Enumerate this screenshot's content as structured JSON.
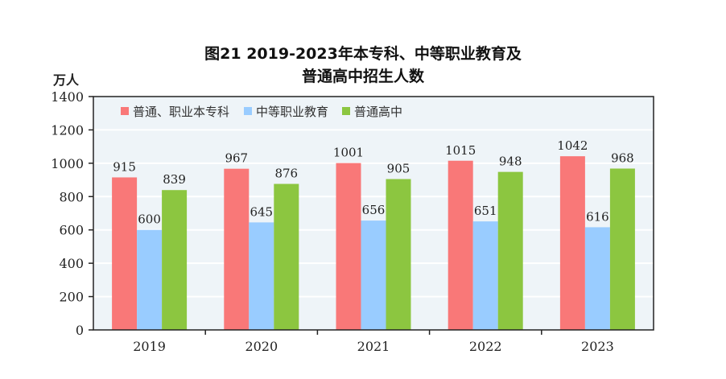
{
  "chart_data": {
    "type": "bar",
    "title_line1": "图21  2019-2023年本专科、中等职业教育及",
    "title_line2": "普通高中招生人数",
    "ylabel": "万人",
    "xlabel": "",
    "ylim": [
      0,
      1400
    ],
    "yticks": [
      0,
      200,
      400,
      600,
      800,
      1000,
      1200,
      1400
    ],
    "grid": true,
    "legend_position": "top",
    "categories": [
      "2019",
      "2020",
      "2021",
      "2022",
      "2023"
    ],
    "series": [
      {
        "name": "普通、职业本专科",
        "color": "#f97878",
        "values": [
          915,
          967,
          1001,
          1015,
          1042
        ]
      },
      {
        "name": "中等职业教育",
        "color": "#99ccff",
        "values": [
          600,
          645,
          656,
          651,
          616
        ]
      },
      {
        "name": "普通高中",
        "color": "#8cc640",
        "values": [
          839,
          876,
          905,
          948,
          968
        ]
      }
    ],
    "plot_background": "#eef4f8"
  }
}
